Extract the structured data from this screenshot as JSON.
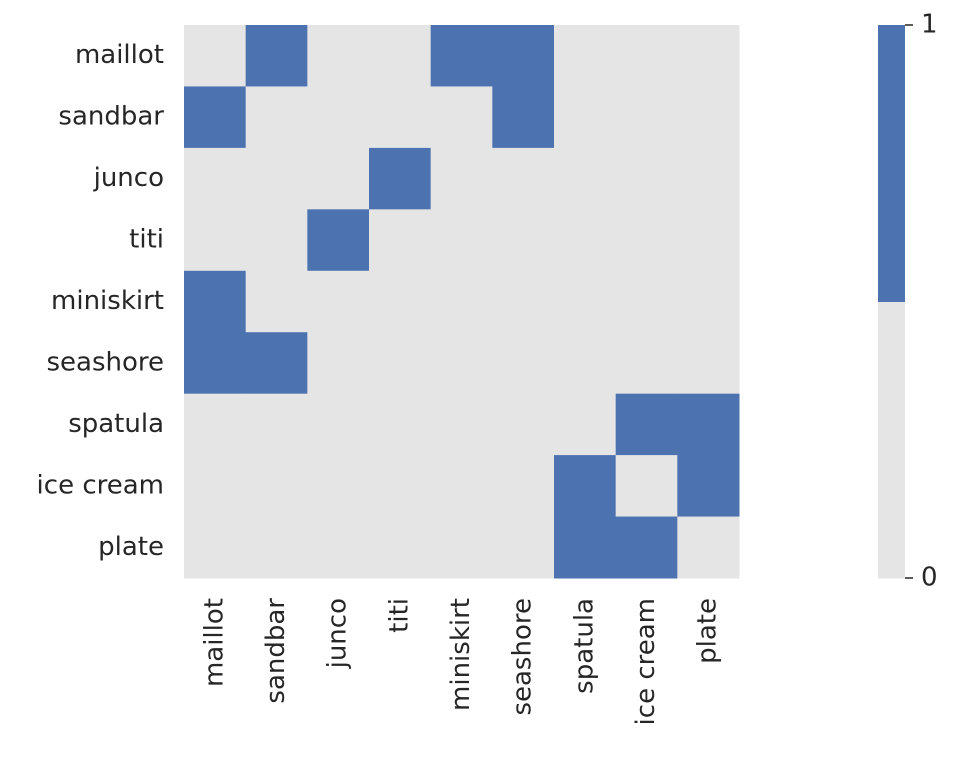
{
  "chart_data": {
    "type": "heatmap",
    "x_categories": [
      "maillot",
      "sandbar",
      "junco",
      "titi",
      "miniskirt",
      "seashore",
      "spatula",
      "ice cream",
      "plate"
    ],
    "y_categories": [
      "maillot",
      "sandbar",
      "junco",
      "titi",
      "miniskirt",
      "seashore",
      "spatula",
      "ice cream",
      "plate"
    ],
    "values": [
      [
        0,
        1,
        0,
        0,
        1,
        1,
        0,
        0,
        0
      ],
      [
        1,
        0,
        0,
        0,
        0,
        1,
        0,
        0,
        0
      ],
      [
        0,
        0,
        0,
        1,
        0,
        0,
        0,
        0,
        0
      ],
      [
        0,
        0,
        1,
        0,
        0,
        0,
        0,
        0,
        0
      ],
      [
        1,
        0,
        0,
        0,
        0,
        0,
        0,
        0,
        0
      ],
      [
        1,
        1,
        0,
        0,
        0,
        0,
        0,
        0,
        0
      ],
      [
        0,
        0,
        0,
        0,
        0,
        0,
        0,
        1,
        1
      ],
      [
        0,
        0,
        0,
        0,
        0,
        0,
        1,
        0,
        1
      ],
      [
        0,
        0,
        0,
        0,
        0,
        0,
        1,
        1,
        0
      ]
    ],
    "colors": [
      "#e5e5e5",
      "#4c72b0"
    ],
    "clim": [
      0,
      1
    ],
    "cticks": [
      0,
      1
    ]
  }
}
